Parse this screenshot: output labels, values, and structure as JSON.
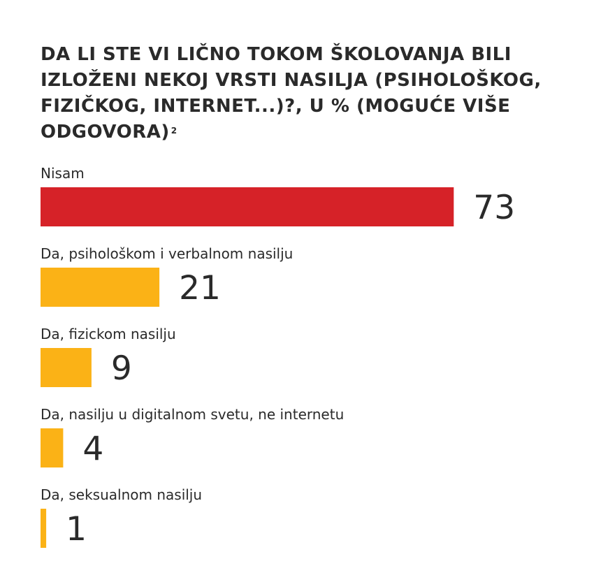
{
  "title": "DA LI STE VI LIČNO TOKOM ŠKOLOVANJA BILI IZLOŽENI NEKOJ VRSTI NASILJA (PSIHOLOŠKOG, FIZIČKOG, INTERNET...)?, U % (MOGUĆE VIŠE ODGOVORA)",
  "title_footnote": "2",
  "colors": {
    "highlight": "#d62228",
    "default": "#fbb216",
    "text": "#2a2a2a"
  },
  "chart_data": {
    "type": "bar",
    "orientation": "horizontal",
    "categories": [
      "Nisam",
      "Da, psihološkom i verbalnom nasilju",
      "Da, fizickom nasilju",
      "Da, nasilju u digitalnom svetu, ne internetu",
      "Da, seksualnom nasilju"
    ],
    "values": [
      73,
      21,
      9,
      4,
      1
    ],
    "bar_colors": [
      "#d62228",
      "#fbb216",
      "#fbb216",
      "#fbb216",
      "#fbb216"
    ],
    "title": "DA LI STE VI LIČNO TOKOM ŠKOLOVANJA BILI IZLOŽENI NEKOJ VRSTI NASILJA (PSIHOLOŠKOG, FIZIČKOG, INTERNET...)?, U % (MOGUĆE VIŠE ODGOVORA)",
    "unit": "%",
    "grid": false,
    "legend": "none"
  }
}
